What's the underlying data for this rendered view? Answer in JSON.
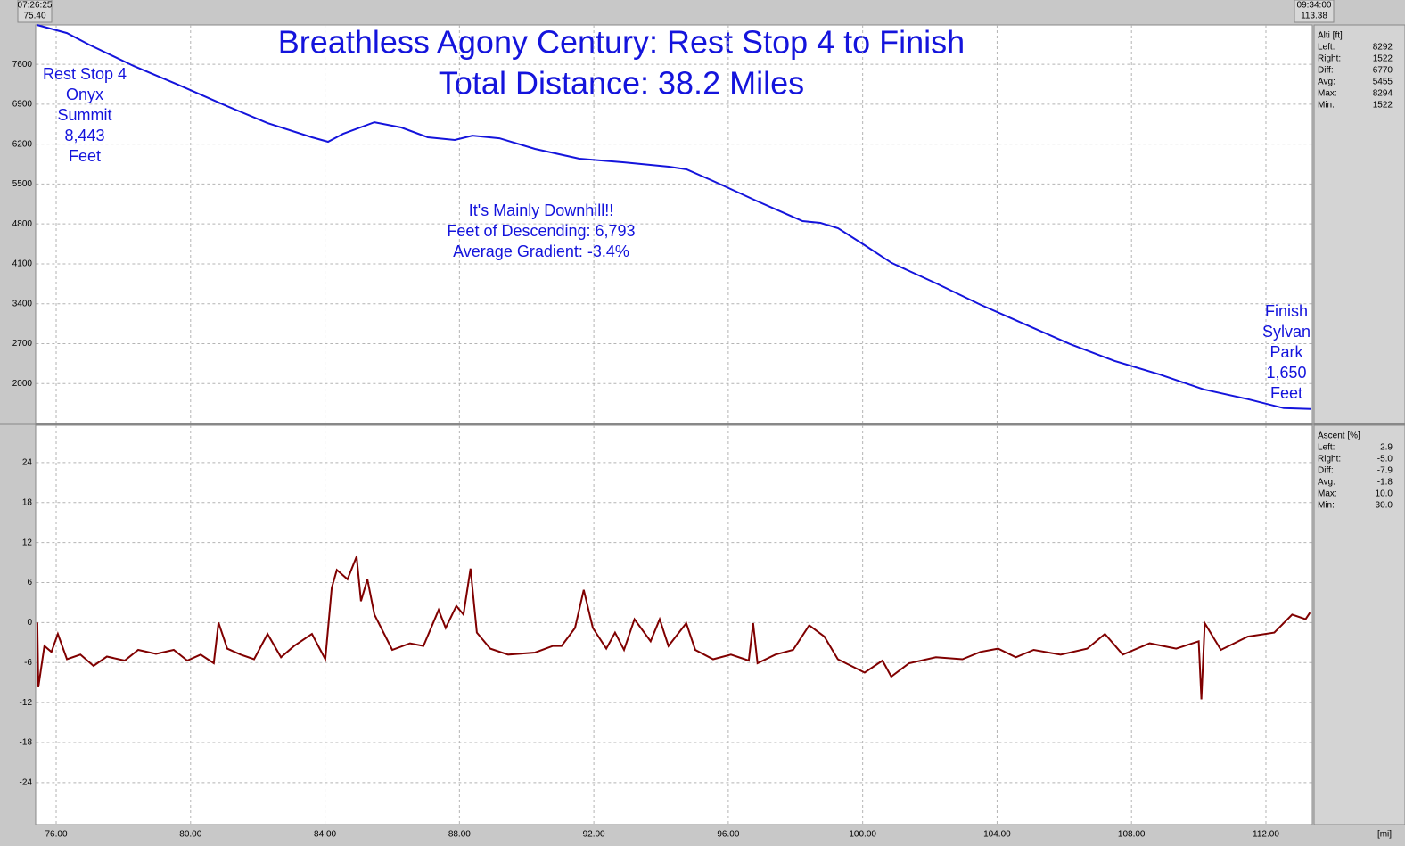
{
  "header": {
    "start_time": "07:26:25",
    "start_distance": "75.40",
    "end_time": "09:34:00",
    "end_distance": "113.38"
  },
  "chart_data": [
    {
      "type": "line",
      "title": "Breathless Agony Century: Rest Stop 4 to Finish",
      "subtitle": "Total Distance: 38.2 Miles",
      "annotations": {
        "start": [
          "Rest Stop 4",
          "Onyx",
          "Summit",
          "8,443",
          "Feet"
        ],
        "middle": [
          "It's Mainly Downhill!!",
          "Feet of Descending: 6,793",
          "Average Gradient: -3.4%"
        ],
        "finish": [
          "Finish",
          "Sylvan",
          "Park",
          "1,650",
          "Feet"
        ]
      },
      "x": [
        75.44,
        76.32,
        76.98,
        78.31,
        79.63,
        80.96,
        82.29,
        83.61,
        84.09,
        84.54,
        85.47,
        86.27,
        87.06,
        87.86,
        88.39,
        89.19,
        90.25,
        91.57,
        92.9,
        94.23,
        94.76,
        95.55,
        96.88,
        98.21,
        98.74,
        99.27,
        100.06,
        100.86,
        102.19,
        103.51,
        104.84,
        106.17,
        107.49,
        108.82,
        110.15,
        111.47,
        112.53,
        113.33
      ],
      "series": [
        {
          "name": "Alti [ft]",
          "color": "#1414dc",
          "values": [
            8288,
            8147,
            7944,
            7569,
            7241,
            6897,
            6569,
            6319,
            6241,
            6381,
            6584,
            6491,
            6319,
            6272,
            6350,
            6303,
            6116,
            5944,
            5881,
            5803,
            5756,
            5553,
            5194,
            4850,
            4819,
            4725,
            4428,
            4116,
            3756,
            3381,
            3038,
            2694,
            2397,
            2163,
            1897,
            1725,
            1569,
            1553
          ]
        }
      ],
      "stats": [
        {
          "label": "Left:",
          "value": "8292"
        },
        {
          "label": "Right:",
          "value": "1522"
        },
        {
          "label": "Diff:",
          "value": "-6770"
        },
        {
          "label": "Avg:",
          "value": "5455"
        },
        {
          "label": "Max:",
          "value": "8294"
        },
        {
          "label": "Min:",
          "value": "1522"
        }
      ],
      "xlim": [
        75.4,
        113.38
      ],
      "ylim": [
        1300,
        8290
      ],
      "yticks": [
        2000,
        2700,
        3400,
        4100,
        4800,
        5500,
        6200,
        6900,
        7600
      ],
      "grid": true
    },
    {
      "type": "line",
      "x": [
        75.44,
        75.47,
        75.65,
        75.86,
        76.05,
        76.32,
        76.72,
        77.11,
        77.51,
        78.04,
        78.44,
        78.97,
        79.5,
        79.9,
        80.3,
        80.69,
        80.83,
        81.09,
        81.49,
        81.89,
        82.29,
        82.69,
        83.08,
        83.61,
        84.01,
        84.2,
        84.35,
        84.67,
        84.94,
        85.07,
        85.26,
        85.47,
        86.0,
        86.53,
        86.93,
        87.38,
        87.59,
        87.91,
        88.12,
        88.33,
        88.52,
        88.92,
        89.45,
        90.25,
        90.78,
        91.04,
        91.44,
        91.7,
        91.97,
        92.37,
        92.63,
        92.9,
        93.21,
        93.69,
        93.96,
        94.22,
        94.75,
        95.02,
        95.55,
        96.08,
        96.61,
        96.74,
        96.87,
        97.4,
        97.93,
        98.41,
        98.86,
        99.26,
        100.06,
        100.59,
        100.85,
        101.38,
        102.18,
        102.97,
        103.5,
        104.03,
        104.56,
        105.09,
        105.89,
        106.68,
        107.21,
        107.74,
        108.54,
        109.33,
        110.0,
        110.08,
        110.18,
        110.66,
        111.46,
        112.25,
        112.78,
        113.18,
        113.31
      ],
      "series": [
        {
          "name": "Ascent [%]",
          "color": "#800000",
          "values": [
            0,
            -9.7,
            -3.5,
            -4.4,
            -1.7,
            -5.5,
            -4.8,
            -6.5,
            -5.1,
            -5.7,
            -4.1,
            -4.7,
            -4.1,
            -5.7,
            -4.8,
            -6.1,
            0,
            -3.9,
            -4.8,
            -5.5,
            -1.7,
            -5.2,
            -3.5,
            -1.7,
            -5.5,
            5.2,
            7.9,
            6.5,
            9.9,
            3.2,
            6.5,
            1.2,
            -4.1,
            -3.1,
            -3.5,
            1.9,
            -0.8,
            2.5,
            1.2,
            8.1,
            -1.5,
            -3.9,
            -4.8,
            -4.5,
            -3.5,
            -3.5,
            -0.8,
            4.9,
            -0.8,
            -3.9,
            -1.5,
            -4.1,
            0.5,
            -2.8,
            0.5,
            -3.5,
            -0.1,
            -4.1,
            -5.5,
            -4.8,
            -5.7,
            -0.1,
            -6.1,
            -4.8,
            -4.1,
            -0.4,
            -2.1,
            -5.5,
            -7.5,
            -5.7,
            -8.1,
            -6.1,
            -5.2,
            -5.5,
            -4.4,
            -3.9,
            -5.2,
            -4.1,
            -4.8,
            -3.9,
            -1.7,
            -4.8,
            -3.1,
            -3.9,
            -2.8,
            -11.5,
            -0.1,
            -4.1,
            -2.1,
            -1.5,
            1.2,
            0.5,
            1.5
          ]
        }
      ],
      "stats": [
        {
          "label": "Left:",
          "value": "2.9"
        },
        {
          "label": "Right:",
          "value": "-5.0"
        },
        {
          "label": "Diff:",
          "value": "-7.9"
        },
        {
          "label": "Avg:",
          "value": "-1.8"
        },
        {
          "label": "Max:",
          "value": "10.0"
        },
        {
          "label": "Min:",
          "value": "-30.0"
        }
      ],
      "xlim": [
        75.4,
        113.38
      ],
      "ylim": [
        -30.3,
        29.6
      ],
      "yticks": [
        -24,
        -18,
        -12,
        -6,
        0,
        6,
        12,
        18,
        24
      ],
      "xticks": [
        {
          "value": 76,
          "label": "76.00"
        },
        {
          "value": 80,
          "label": "80.00"
        },
        {
          "value": 84,
          "label": "84.00"
        },
        {
          "value": 88,
          "label": "88.00"
        },
        {
          "value": 92,
          "label": "92.00"
        },
        {
          "value": 96,
          "label": "96.00"
        },
        {
          "value": 100,
          "label": "100.00"
        },
        {
          "value": 104,
          "label": "104.00"
        },
        {
          "value": 108,
          "label": "108.00"
        },
        {
          "value": 112,
          "label": "112.00"
        }
      ],
      "xlabel": "[mi]",
      "grid": true
    }
  ]
}
